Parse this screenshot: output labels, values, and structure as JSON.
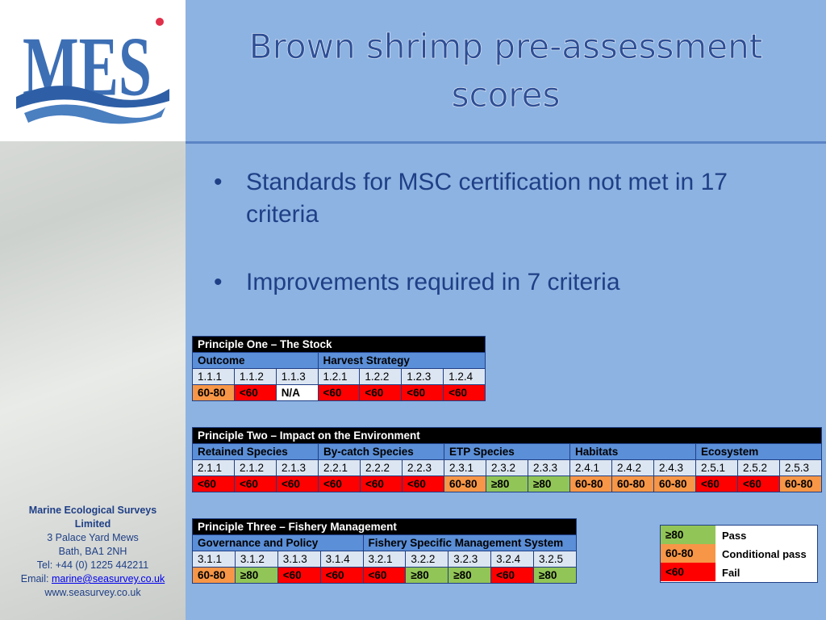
{
  "logo": {
    "text": "MES"
  },
  "title": "Brown shrimp pre-assessment scores",
  "bullets": [
    "Standards for MSC certification not met in 17 criteria",
    "Improvements required in 7 criteria"
  ],
  "tables": [
    {
      "title": "Principle One – The Stock",
      "groups": [
        {
          "name": "Outcome",
          "criteria": [
            {
              "code": "1.1.1",
              "score": "60-80"
            },
            {
              "code": "1.1.2",
              "score": "<60"
            },
            {
              "code": "1.1.3",
              "score": "N/A"
            }
          ]
        },
        {
          "name": "Harvest Strategy",
          "criteria": [
            {
              "code": "1.2.1",
              "score": "<60"
            },
            {
              "code": "1.2.2",
              "score": "<60"
            },
            {
              "code": "1.2.3",
              "score": "<60"
            },
            {
              "code": "1.2.4",
              "score": "<60"
            }
          ]
        }
      ]
    },
    {
      "title": "Principle Two – Impact on the Environment",
      "groups": [
        {
          "name": "Retained Species",
          "criteria": [
            {
              "code": "2.1.1",
              "score": "<60"
            },
            {
              "code": "2.1.2",
              "score": "<60"
            },
            {
              "code": "2.1.3",
              "score": "<60"
            }
          ]
        },
        {
          "name": "By-catch Species",
          "criteria": [
            {
              "code": "2.2.1",
              "score": "<60"
            },
            {
              "code": "2.2.2",
              "score": "<60"
            },
            {
              "code": "2.2.3",
              "score": "<60"
            }
          ]
        },
        {
          "name": "ETP Species",
          "criteria": [
            {
              "code": "2.3.1",
              "score": "60-80"
            },
            {
              "code": "2.3.2",
              "score": "≥80"
            },
            {
              "code": "2.3.3",
              "score": "≥80"
            }
          ]
        },
        {
          "name": "Habitats",
          "criteria": [
            {
              "code": "2.4.1",
              "score": "60-80"
            },
            {
              "code": "2.4.2",
              "score": "60-80"
            },
            {
              "code": "2.4.3",
              "score": "60-80"
            }
          ]
        },
        {
          "name": "Ecosystem",
          "criteria": [
            {
              "code": "2.5.1",
              "score": "<60"
            },
            {
              "code": "2.5.2",
              "score": "<60"
            },
            {
              "code": "2.5.3",
              "score": "60-80"
            }
          ]
        }
      ]
    },
    {
      "title": "Principle Three – Fishery Management",
      "groups": [
        {
          "name": "Governance and Policy",
          "criteria": [
            {
              "code": "3.1.1",
              "score": "60-80"
            },
            {
              "code": "3.1.2",
              "score": "≥80"
            },
            {
              "code": "3.1.3",
              "score": "<60"
            },
            {
              "code": "3.1.4",
              "score": "<60"
            }
          ]
        },
        {
          "name": "Fishery Specific Management System",
          "criteria": [
            {
              "code": "3.2.1",
              "score": "<60"
            },
            {
              "code": "3.2.2",
              "score": "≥80"
            },
            {
              "code": "3.2.3",
              "score": "≥80"
            },
            {
              "code": "3.2.4",
              "score": "<60"
            },
            {
              "code": "3.2.5",
              "score": "≥80"
            }
          ]
        }
      ]
    }
  ],
  "legend": [
    {
      "score": "≥80",
      "meaning": "Pass",
      "color": "#92c557"
    },
    {
      "score": "60-80",
      "meaning": "Conditional pass",
      "color": "#f79646"
    },
    {
      "score": "<60",
      "meaning": "Fail",
      "color": "#ff0000"
    }
  ],
  "contact": {
    "name": "Marine Ecological Surveys Limited",
    "lines": [
      "3 Palace Yard Mews",
      "Bath, BA1 2NH",
      "Tel: +44 (0) 1225 442211"
    ],
    "email_label": "Email:",
    "email": "marine@seasurvey.co.uk",
    "website": "www.seasurvey.co.uk"
  }
}
